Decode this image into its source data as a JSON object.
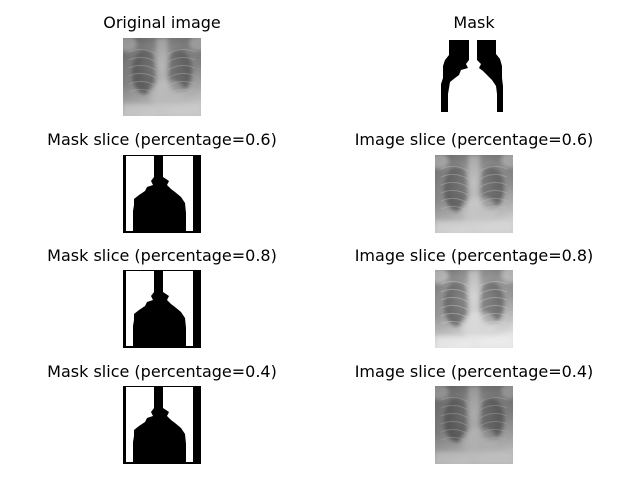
{
  "panels": [
    {
      "title": "Original image",
      "kind": "xray",
      "brightness": 0.9
    },
    {
      "title": "Mask",
      "kind": "mask-original"
    },
    {
      "title": "Mask slice (percentage=0.6)",
      "kind": "mask-slice"
    },
    {
      "title": "Image slice (percentage=0.6)",
      "kind": "xray",
      "brightness": 0.95
    },
    {
      "title": "Mask slice (percentage=0.8)",
      "kind": "mask-slice"
    },
    {
      "title": "Image slice (percentage=0.8)",
      "kind": "xray",
      "brightness": 1.05
    },
    {
      "title": "Mask slice (percentage=0.4)",
      "kind": "mask-slice"
    },
    {
      "title": "Image slice (percentage=0.4)",
      "kind": "xray",
      "brightness": 0.85
    }
  ]
}
